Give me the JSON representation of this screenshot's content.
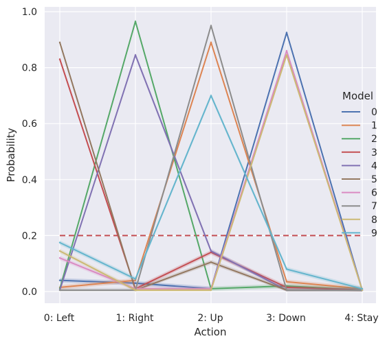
{
  "chart_data": {
    "type": "line",
    "xlabel": "Action",
    "ylabel": "Probability",
    "categories": [
      "0: Left",
      "1: Right",
      "2: Up",
      "3: Down",
      "4: Stay"
    ],
    "ylim": [
      -0.05,
      1.02
    ],
    "yticks": [
      "0.0",
      "0.2",
      "0.4",
      "0.6",
      "0.8",
      "1.0"
    ],
    "grid": true,
    "background": "#eaeaf2",
    "legend": {
      "title": "Model",
      "placement": "right"
    },
    "series": [
      {
        "name": "0",
        "color": "#4c72b0",
        "values": [
          0.04,
          0.03,
          0.01,
          0.925,
          0.005
        ]
      },
      {
        "name": "1",
        "color": "#dd8452",
        "values": [
          0.015,
          0.04,
          0.89,
          0.035,
          0.01
        ]
      },
      {
        "name": "2",
        "color": "#55a868",
        "values": [
          0.01,
          0.965,
          0.01,
          0.02,
          0.005
        ]
      },
      {
        "name": "3",
        "color": "#c44e52",
        "values": [
          0.83,
          0.01,
          0.14,
          0.015,
          0.005
        ]
      },
      {
        "name": "4",
        "color": "#8172b3",
        "values": [
          0.005,
          0.845,
          0.145,
          0.005,
          0.005
        ]
      },
      {
        "name": "5",
        "color": "#937860",
        "values": [
          0.89,
          0.005,
          0.105,
          0.005,
          0.005
        ]
      },
      {
        "name": "6",
        "color": "#da8bc3",
        "values": [
          0.12,
          0.01,
          0.01,
          0.86,
          0.005
        ]
      },
      {
        "name": "7",
        "color": "#8c8c8c",
        "values": [
          0.005,
          0.005,
          0.95,
          0.005,
          0.005
        ]
      },
      {
        "name": "8",
        "color": "#ccb974",
        "values": [
          0.145,
          0.005,
          0.005,
          0.845,
          0.005
        ]
      },
      {
        "name": "9",
        "color": "#64b5cd",
        "values": [
          0.175,
          0.045,
          0.7,
          0.08,
          0.01
        ]
      }
    ],
    "reference_line": {
      "y": 0.2,
      "color": "#c44e52",
      "style": "dashed"
    }
  }
}
